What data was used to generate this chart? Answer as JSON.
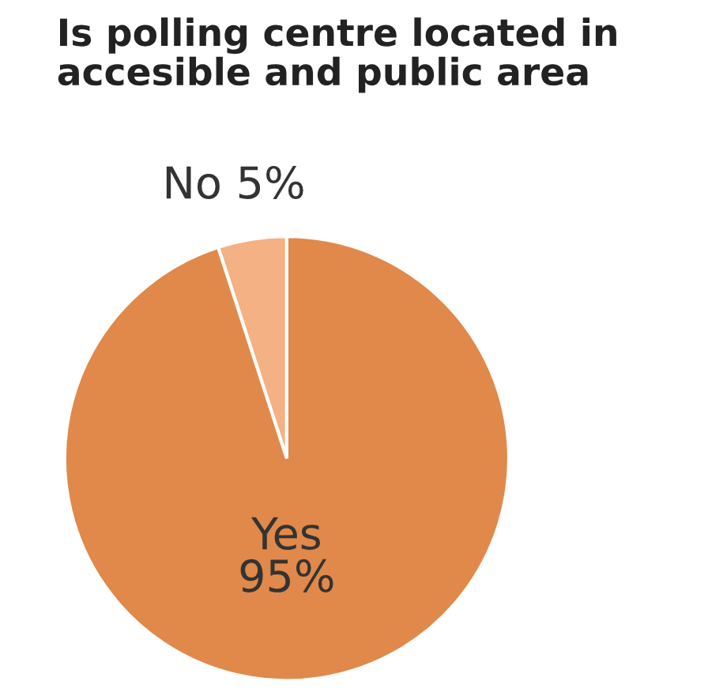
{
  "chart_data": {
    "type": "pie",
    "title": "Is polling centre located in accesible and public area",
    "categories": [
      "No",
      "Yes"
    ],
    "values": [
      5,
      95
    ],
    "value_labels": [
      "5%",
      "95%"
    ],
    "colors": [
      "#f4b183",
      "#e0894a"
    ],
    "legend": false
  }
}
